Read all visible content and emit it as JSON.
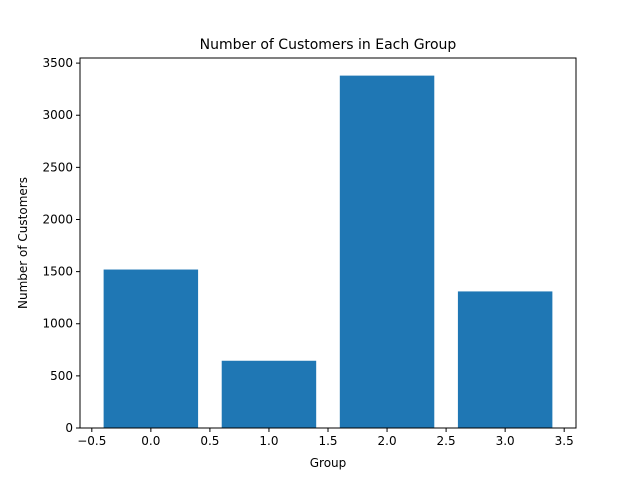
{
  "chart_data": {
    "type": "bar",
    "title": "Number of Customers in Each Group",
    "xlabel": "Group",
    "ylabel": "Number of Customers",
    "x": [
      0,
      1,
      2,
      3
    ],
    "values": [
      1520,
      645,
      3380,
      1310
    ],
    "bar_width": 0.8,
    "xlim": [
      -0.6,
      3.6
    ],
    "ylim": [
      0,
      3549
    ],
    "xticks": [
      -0.5,
      0.0,
      0.5,
      1.0,
      1.5,
      2.0,
      2.5,
      3.0,
      3.5
    ],
    "xtick_labels": [
      "−0.5",
      "0.0",
      "0.5",
      "1.0",
      "1.5",
      "2.0",
      "2.5",
      "3.0",
      "3.5"
    ],
    "yticks": [
      0,
      500,
      1000,
      1500,
      2000,
      2500,
      3000,
      3500
    ],
    "ytick_labels": [
      "0",
      "500",
      "1000",
      "1500",
      "2000",
      "2500",
      "3000",
      "3500"
    ],
    "grid": false,
    "legend": "none",
    "bar_color": "#1f77b4"
  }
}
